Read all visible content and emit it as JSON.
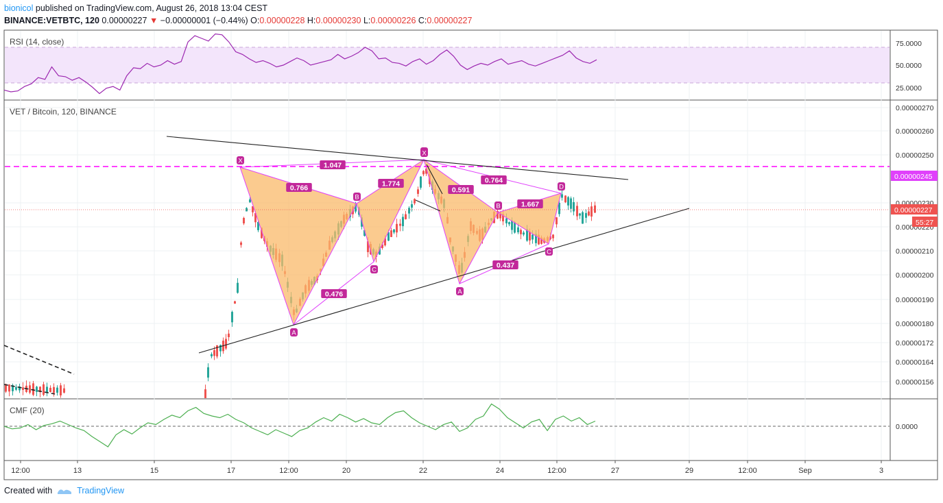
{
  "header": {
    "author": "bionicol",
    "published_text": "published on TradingView.com, August 26, 2018 13:04 CEST",
    "symbol": "BINANCE:VETBTC, 120",
    "last": "0.00000227",
    "change": "−0.00000001 (−0.44%)",
    "o_label": "O:",
    "o_value": "0.00000228",
    "h_label": "H:",
    "h_value": "0.00000230",
    "l_label": "L:",
    "l_value": "0.00000226",
    "c_label": "C:",
    "c_value": "0.00000227"
  },
  "footer": {
    "created_with": "Created with",
    "brand": "TradingView"
  },
  "colors": {
    "up": "#26a69a",
    "down": "#ef5350",
    "pattern_fill": "#f9b96a",
    "pattern_stroke": "#e040fb",
    "label_bg": "#c2289a",
    "rsi": "#9c27b0",
    "rsi_band": "#f3e5fb",
    "cmf": "#4caf50",
    "level": "#ff00ff"
  },
  "chart_data": [
    {
      "type": "line",
      "pane": "RSI",
      "title": "RSI (14, close)",
      "y_ticks": [
        "75.0000",
        "50.0000",
        "25.0000"
      ],
      "ylim": [
        11,
        88
      ],
      "band": [
        30,
        70
      ],
      "values": [
        22,
        20,
        21,
        26,
        29,
        36,
        34,
        48,
        38,
        37,
        33,
        36,
        31,
        25,
        18,
        24,
        26,
        22,
        38,
        47,
        46,
        52,
        48,
        50,
        55,
        51,
        54,
        76,
        83,
        80,
        77,
        85,
        84,
        76,
        65,
        62,
        57,
        53,
        55,
        52,
        48,
        50,
        54,
        58,
        55,
        50,
        52,
        54,
        56,
        62,
        57,
        60,
        64,
        70,
        66,
        57,
        58,
        53,
        52,
        49,
        54,
        57,
        51,
        55,
        62,
        67,
        60,
        50,
        45,
        49,
        52,
        50,
        54,
        57,
        51,
        53,
        55,
        51,
        49,
        52,
        55,
        58,
        61,
        66,
        58,
        54,
        52,
        56
      ]
    },
    {
      "type": "candlestick",
      "pane": "Price",
      "title": "VET / Bitcoin, 120, BINANCE",
      "y_ticks": [
        "0.00000270",
        "0.00000260",
        "0.00000250",
        "0.00000230",
        "0.00000220",
        "0.00000210",
        "0.00000200",
        "0.00000190",
        "0.00000180",
        "0.00000172",
        "0.00000164",
        "0.00000156"
      ],
      "current_price_label": "0.00000227",
      "countdown_label": "55:27",
      "level_label": "0.00000245",
      "patterns": [
        {
          "points": [
            [
              "X",
              350,
              244
            ],
            [
              "A",
              428,
              474
            ],
            [
              "B",
              520,
              297
            ],
            [
              "C",
              545,
              382
            ],
            [
              "D",
              618,
              233
            ]
          ],
          "ratios": [
            [
              "0.766",
              436,
              274
            ],
            [
              "1.047",
              485,
              241
            ],
            [
              "1.774",
              570,
              268
            ],
            [
              "0.476",
              487,
              429
            ]
          ]
        },
        {
          "points": [
            [
              "X",
              618,
              233
            ],
            [
              "A",
              670,
              414
            ],
            [
              "B",
              726,
              310
            ],
            [
              "C",
              800,
              356
            ],
            [
              "D",
              818,
              282
            ]
          ],
          "ratios": [
            [
              "0.591",
              672,
              277
            ],
            [
              "0.764",
              720,
              263
            ],
            [
              "1.667",
              773,
              298
            ],
            [
              "0.437",
              737,
              387
            ]
          ]
        }
      ]
    },
    {
      "type": "line",
      "pane": "CMF",
      "title": "CMF (20)",
      "y_ticks": [
        "0.0000"
      ],
      "ylim": [
        -0.3,
        0.3
      ],
      "values": [
        0.0,
        -0.03,
        -0.02,
        0.02,
        -0.04,
        0.01,
        0.03,
        0.06,
        0.02,
        -0.02,
        -0.05,
        -0.12,
        -0.18,
        -0.24,
        -0.1,
        -0.04,
        -0.09,
        -0.02,
        0.04,
        0.02,
        0.08,
        0.13,
        0.1,
        0.18,
        0.22,
        0.15,
        0.12,
        0.1,
        0.14,
        0.08,
        0.04,
        -0.02,
        -0.06,
        -0.1,
        -0.04,
        -0.08,
        -0.12,
        -0.05,
        -0.02,
        0.05,
        0.1,
        0.06,
        0.14,
        0.1,
        0.05,
        0.09,
        0.04,
        0.02,
        0.1,
        0.16,
        0.18,
        0.1,
        0.04,
        0.0,
        -0.04,
        0.02,
        0.05,
        -0.06,
        -0.02,
        0.08,
        0.12,
        0.26,
        0.2,
        0.1,
        0.04,
        -0.02,
        0.05,
        0.08,
        -0.05,
        0.08,
        0.12,
        0.06,
        0.1,
        0.02,
        0.06
      ]
    }
  ],
  "time_axis": [
    "12:00",
    "13",
    "15",
    "17",
    "12:00",
    "20",
    "22",
    "24",
    "12:00",
    "27",
    "29",
    "12:00",
    "Sep",
    "3"
  ]
}
